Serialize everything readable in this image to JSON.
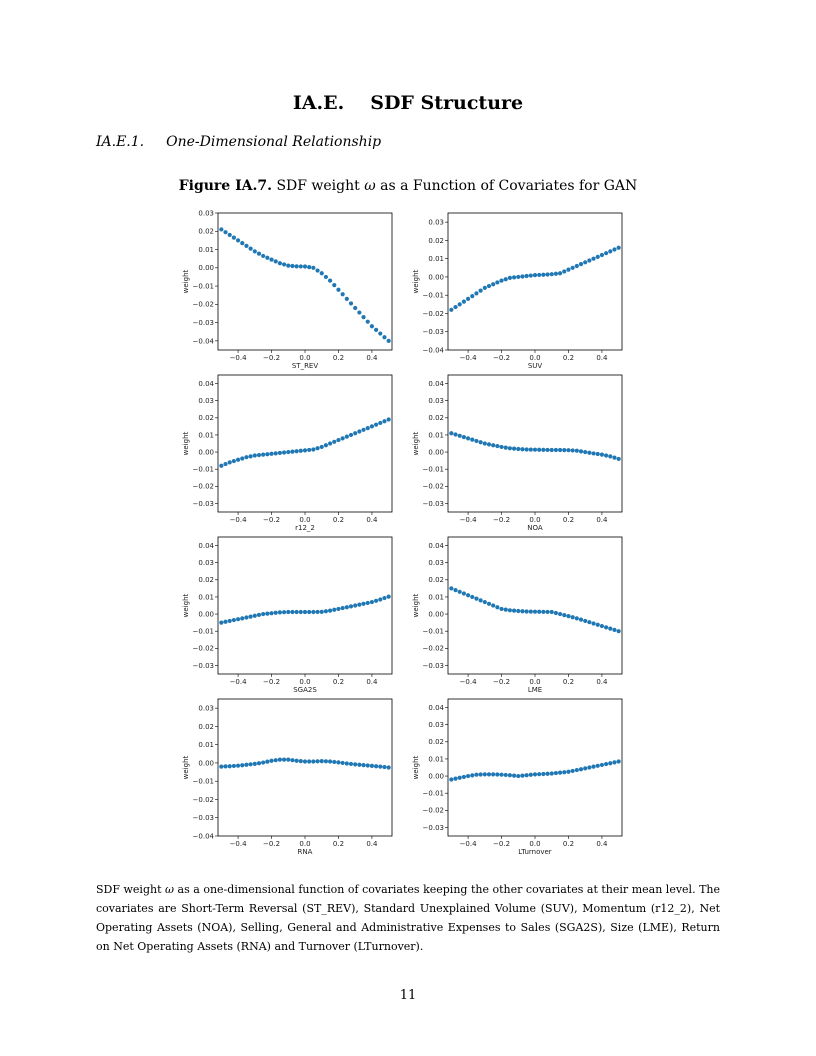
{
  "section": {
    "number": "IA.E.",
    "title": "SDF Structure"
  },
  "subsection": {
    "number": "IA.E.1.",
    "title": "One-Dimensional Relationship"
  },
  "figure": {
    "label": "Figure IA.7.",
    "caption_pre": "SDF weight",
    "omega": "ω",
    "caption_post": "as a Function of Covariates for GAN"
  },
  "chart_data": [
    {
      "type": "scatter",
      "xlabel": "ST_REV",
      "ylabel": "weight",
      "xlim": [
        -0.52,
        0.52
      ],
      "ylim": [
        -0.045,
        0.03
      ],
      "x": [
        -0.5,
        -0.45,
        -0.4,
        -0.35,
        -0.3,
        -0.25,
        -0.2,
        -0.15,
        -0.1,
        -0.05,
        0.0,
        0.05,
        0.1,
        0.15,
        0.2,
        0.25,
        0.3,
        0.35,
        0.4,
        0.45,
        0.5
      ],
      "y": [
        0.021,
        0.018,
        0.015,
        0.012,
        0.009,
        0.0065,
        0.0045,
        0.0025,
        0.0012,
        0.0008,
        0.0007,
        0.0,
        -0.003,
        -0.007,
        -0.012,
        -0.017,
        -0.022,
        -0.027,
        -0.032,
        -0.036,
        -0.04
      ],
      "x_ticks": [
        "−0.4",
        "−0.2",
        "0.0",
        "0.2",
        "0.4"
      ],
      "y_ticks": [
        "0.03",
        "0.02",
        "0.01",
        "0.00",
        "−0.01",
        "−0.02",
        "−0.03",
        "−0.04"
      ]
    },
    {
      "type": "scatter",
      "xlabel": "SUV",
      "ylabel": "weight",
      "xlim": [
        -0.52,
        0.52
      ],
      "ylim": [
        -0.04,
        0.035
      ],
      "x": [
        -0.5,
        -0.45,
        -0.4,
        -0.35,
        -0.3,
        -0.25,
        -0.2,
        -0.15,
        -0.1,
        -0.05,
        0.0,
        0.05,
        0.1,
        0.15,
        0.2,
        0.25,
        0.3,
        0.35,
        0.4,
        0.45,
        0.5
      ],
      "y": [
        -0.018,
        -0.015,
        -0.012,
        -0.009,
        -0.006,
        -0.004,
        -0.002,
        -0.0005,
        0.0,
        0.0005,
        0.001,
        0.0012,
        0.0015,
        0.002,
        0.004,
        0.006,
        0.008,
        0.01,
        0.012,
        0.014,
        0.016
      ],
      "x_ticks": [
        "−0.4",
        "−0.2",
        "0.0",
        "0.2",
        "0.4"
      ],
      "y_ticks": [
        "0.03",
        "0.02",
        "0.01",
        "0.00",
        "−0.01",
        "−0.02",
        "−0.03",
        "−0.04"
      ]
    },
    {
      "type": "scatter",
      "xlabel": "r12_2",
      "ylabel": "weight",
      "xlim": [
        -0.52,
        0.52
      ],
      "ylim": [
        -0.035,
        0.045
      ],
      "x": [
        -0.5,
        -0.45,
        -0.4,
        -0.35,
        -0.3,
        -0.25,
        -0.2,
        -0.15,
        -0.1,
        -0.05,
        0.0,
        0.05,
        0.1,
        0.15,
        0.2,
        0.25,
        0.3,
        0.35,
        0.4,
        0.45,
        0.5
      ],
      "y": [
        -0.008,
        -0.006,
        -0.0045,
        -0.003,
        -0.002,
        -0.0015,
        -0.001,
        -0.0005,
        0.0,
        0.0005,
        0.001,
        0.0015,
        0.003,
        0.005,
        0.007,
        0.009,
        0.011,
        0.013,
        0.015,
        0.017,
        0.019
      ],
      "x_ticks": [
        "−0.4",
        "−0.2",
        "0.0",
        "0.2",
        "0.4"
      ],
      "y_ticks": [
        "0.04",
        "0.03",
        "0.02",
        "0.01",
        "0.00",
        "−0.01",
        "−0.02",
        "−0.03"
      ]
    },
    {
      "type": "scatter",
      "xlabel": "NOA",
      "ylabel": "weight",
      "xlim": [
        -0.52,
        0.52
      ],
      "ylim": [
        -0.035,
        0.045
      ],
      "x": [
        -0.5,
        -0.45,
        -0.4,
        -0.35,
        -0.3,
        -0.25,
        -0.2,
        -0.15,
        -0.1,
        -0.05,
        0.0,
        0.05,
        0.1,
        0.15,
        0.2,
        0.25,
        0.3,
        0.35,
        0.4,
        0.45,
        0.5
      ],
      "y": [
        0.011,
        0.0095,
        0.008,
        0.0065,
        0.005,
        0.004,
        0.003,
        0.0022,
        0.0018,
        0.0015,
        0.0014,
        0.0013,
        0.0012,
        0.0012,
        0.0011,
        0.0008,
        0.0,
        -0.0008,
        -0.0015,
        -0.0025,
        -0.004
      ],
      "x_ticks": [
        "−0.4",
        "−0.2",
        "0.0",
        "0.2",
        "0.4"
      ],
      "y_ticks": [
        "0.04",
        "0.03",
        "0.02",
        "0.01",
        "0.00",
        "−0.01",
        "−0.02",
        "−0.03"
      ]
    },
    {
      "type": "scatter",
      "xlabel": "SGA2S",
      "ylabel": "weight",
      "xlim": [
        -0.52,
        0.52
      ],
      "ylim": [
        -0.035,
        0.045
      ],
      "x": [
        -0.5,
        -0.45,
        -0.4,
        -0.35,
        -0.3,
        -0.25,
        -0.2,
        -0.15,
        -0.1,
        -0.05,
        0.0,
        0.05,
        0.1,
        0.15,
        0.2,
        0.25,
        0.3,
        0.35,
        0.4,
        0.45,
        0.5
      ],
      "y": [
        -0.005,
        -0.004,
        -0.003,
        -0.002,
        -0.001,
        0.0,
        0.0005,
        0.001,
        0.0012,
        0.0012,
        0.0012,
        0.0012,
        0.0013,
        0.002,
        0.003,
        0.004,
        0.005,
        0.006,
        0.007,
        0.0085,
        0.0102
      ],
      "x_ticks": [
        "−0.4",
        "−0.2",
        "0.0",
        "0.2",
        "0.4"
      ],
      "y_ticks": [
        "0.04",
        "0.03",
        "0.02",
        "0.01",
        "0.00",
        "−0.01",
        "−0.02",
        "−0.03"
      ]
    },
    {
      "type": "scatter",
      "xlabel": "LME",
      "ylabel": "weight",
      "xlim": [
        -0.52,
        0.52
      ],
      "ylim": [
        -0.035,
        0.045
      ],
      "x": [
        -0.5,
        -0.45,
        -0.4,
        -0.35,
        -0.3,
        -0.25,
        -0.2,
        -0.15,
        -0.1,
        -0.05,
        0.0,
        0.05,
        0.1,
        0.15,
        0.2,
        0.25,
        0.3,
        0.35,
        0.4,
        0.45,
        0.5
      ],
      "y": [
        0.015,
        0.013,
        0.011,
        0.009,
        0.007,
        0.005,
        0.003,
        0.0022,
        0.0018,
        0.0015,
        0.0014,
        0.0013,
        0.0012,
        0.0,
        -0.0012,
        -0.0025,
        -0.004,
        -0.0055,
        -0.007,
        -0.0085,
        -0.01
      ],
      "x_ticks": [
        "−0.4",
        "−0.2",
        "0.0",
        "0.2",
        "0.4"
      ],
      "y_ticks": [
        "0.04",
        "0.03",
        "0.02",
        "0.01",
        "0.00",
        "−0.01",
        "−0.02",
        "−0.03"
      ]
    },
    {
      "type": "scatter",
      "xlabel": "RNA",
      "ylabel": "weight",
      "xlim": [
        -0.52,
        0.52
      ],
      "ylim": [
        -0.04,
        0.035
      ],
      "x": [
        -0.5,
        -0.45,
        -0.4,
        -0.35,
        -0.3,
        -0.25,
        -0.2,
        -0.15,
        -0.1,
        -0.05,
        0.0,
        0.05,
        0.1,
        0.15,
        0.2,
        0.25,
        0.3,
        0.35,
        0.4,
        0.45,
        0.5
      ],
      "y": [
        -0.002,
        -0.0018,
        -0.0015,
        -0.001,
        -0.0005,
        0.0002,
        0.0012,
        0.0018,
        0.0018,
        0.0012,
        0.0008,
        0.0008,
        0.001,
        0.0008,
        0.0003,
        -0.0003,
        -0.0008,
        -0.0012,
        -0.0016,
        -0.002,
        -0.0025
      ],
      "x_ticks": [
        "−0.4",
        "−0.2",
        "0.0",
        "0.2",
        "0.4"
      ],
      "y_ticks": [
        "0.03",
        "0.02",
        "0.01",
        "0.00",
        "−0.01",
        "−0.02",
        "−0.03",
        "−0.04"
      ]
    },
    {
      "type": "scatter",
      "xlabel": "LTurnover",
      "ylabel": "weight",
      "xlim": [
        -0.52,
        0.52
      ],
      "ylim": [
        -0.035,
        0.045
      ],
      "x": [
        -0.5,
        -0.45,
        -0.4,
        -0.35,
        -0.3,
        -0.25,
        -0.2,
        -0.15,
        -0.1,
        -0.05,
        0.0,
        0.05,
        0.1,
        0.15,
        0.2,
        0.25,
        0.3,
        0.35,
        0.4,
        0.45,
        0.5
      ],
      "y": [
        -0.002,
        -0.001,
        0.0,
        0.0008,
        0.001,
        0.001,
        0.0008,
        0.0005,
        0.0,
        0.0005,
        0.001,
        0.0012,
        0.0015,
        0.002,
        0.0025,
        0.0035,
        0.0045,
        0.0055,
        0.0065,
        0.0075,
        0.0085
      ],
      "x_ticks": [
        "−0.4",
        "−0.2",
        "0.0",
        "0.2",
        "0.4"
      ],
      "y_ticks": [
        "0.04",
        "0.03",
        "0.02",
        "0.01",
        "0.00",
        "−0.01",
        "−0.02",
        "−0.03"
      ]
    }
  ],
  "notes": {
    "prefix": "SDF weight",
    "omega": "ω",
    "body": "as a one-dimensional function of covariates keeping the other covariates at their mean level. The covariates are Short-Term Reversal (ST_REV), Standard Unexplained Volume (SUV), Momentum (r12_2), Net Operating Assets (NOA), Selling, General and Administrative Expenses to Sales (SGA2S), Size (LME), Return on Net Operating Assets (RNA) and Turnover (LTurnover)."
  },
  "page_number": "11",
  "colors": {
    "marker": "#1f77b4"
  }
}
